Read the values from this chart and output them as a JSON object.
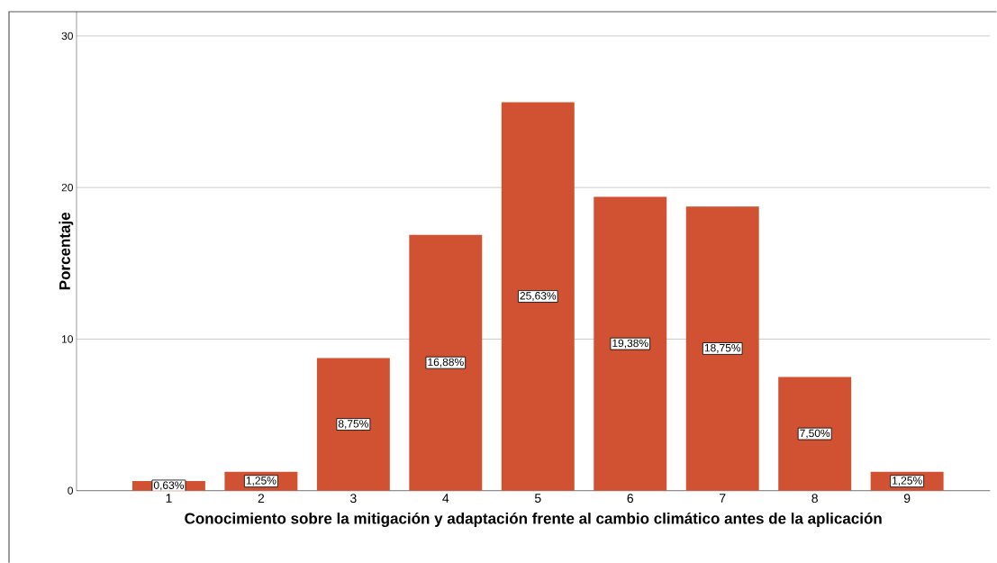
{
  "chart_data": {
    "type": "bar",
    "xlabel": "Conocimiento sobre la mitigación y adaptación frente al cambio climático antes de la aplicación",
    "ylabel": "Porcentaje",
    "categories": [
      "1",
      "2",
      "3",
      "4",
      "5",
      "6",
      "7",
      "8",
      "9"
    ],
    "values": [
      0.63,
      1.25,
      8.75,
      16.88,
      25.63,
      19.38,
      18.75,
      7.5,
      1.25
    ],
    "value_labels": [
      "0,63%",
      "1,25%",
      "8,75%",
      "16,88%",
      "25,63%",
      "19,38%",
      "18,75%",
      "7,50%",
      "1,25%"
    ],
    "color": "#d05232",
    "ylim": [
      0,
      31.6
    ],
    "yticks": [
      0,
      10,
      20,
      30
    ],
    "grid": "y"
  }
}
